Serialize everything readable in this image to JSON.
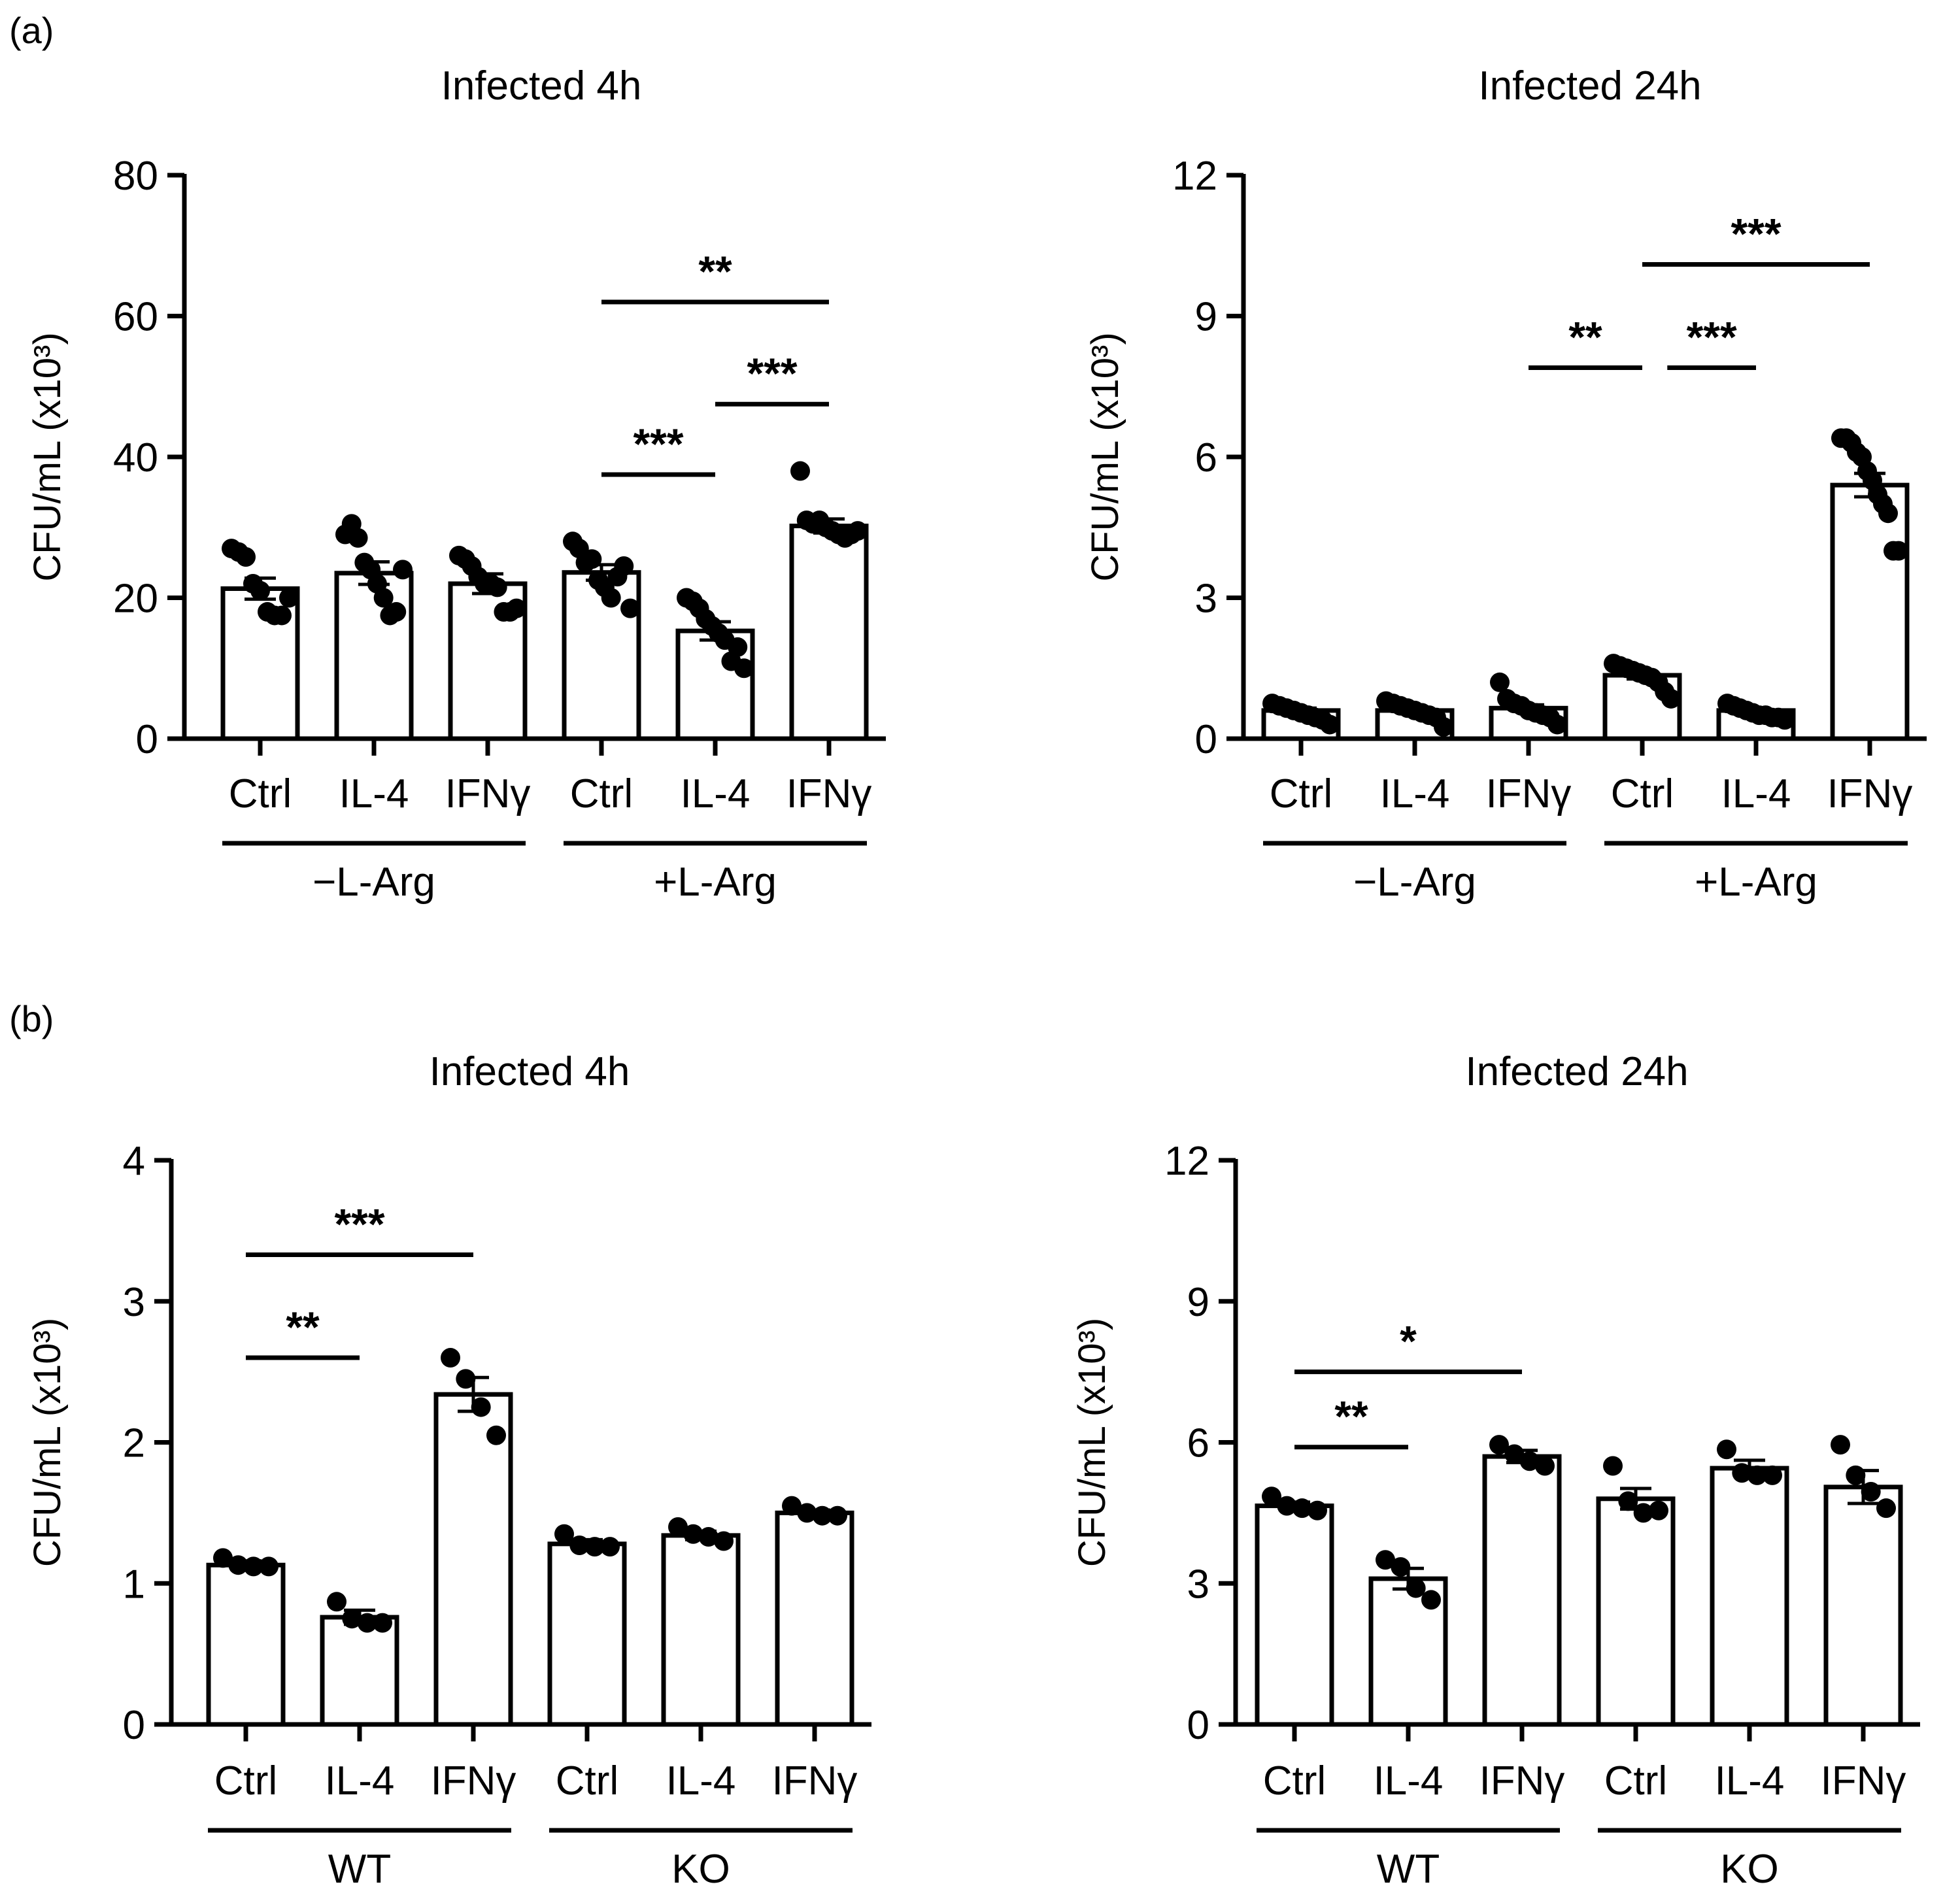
{
  "panel_labels": [
    "(a)",
    "(b)"
  ],
  "chart_data": [
    {
      "type": "bar",
      "panel": "(a)",
      "title": "Infected 4h",
      "ylabel": "CFU/mL (x10³)",
      "ylim": [
        0,
        80
      ],
      "yticks": [
        0,
        20,
        40,
        60,
        80
      ],
      "categories": [
        "Ctrl",
        "IL-4",
        "IFNγ",
        "Ctrl",
        "IL-4",
        "IFNγ"
      ],
      "groups": [
        {
          "label": "−L-Arg",
          "from": 0,
          "to": 2
        },
        {
          "label": "+L-Arg",
          "from": 3,
          "to": 5
        }
      ],
      "values": [
        21.3,
        23.5,
        22.0,
        23.6,
        15.3,
        30.2
      ],
      "sem": [
        1.5,
        1.6,
        1.4,
        1.1,
        1.3,
        1.0
      ],
      "points": [
        [
          27,
          26.5,
          25.8,
          22,
          21,
          18,
          17.5,
          17.5,
          20
        ],
        [
          29,
          30.5,
          28.5,
          25,
          24,
          22,
          20,
          17.5,
          18,
          24
        ],
        [
          26,
          25.5,
          24.5,
          23,
          22,
          22,
          21.5,
          18,
          18,
          18.5
        ],
        [
          28,
          27,
          25,
          25.5,
          22.5,
          21.5,
          20,
          23,
          24.5,
          18.5
        ],
        [
          20,
          19.5,
          18.5,
          17,
          16,
          15,
          14,
          11,
          13,
          10
        ],
        [
          38,
          31,
          30.5,
          31,
          30,
          29.5,
          29,
          28.5,
          29,
          29.5
        ]
      ],
      "significance": [
        {
          "from": 3,
          "to": 5,
          "label": "**",
          "y": 62
        },
        {
          "from": 4,
          "to": 5,
          "label": "***",
          "y": 47.5
        },
        {
          "from": 3,
          "to": 4,
          "label": "***",
          "y": 37.5
        }
      ]
    },
    {
      "type": "bar",
      "panel": "(a)",
      "title": "Infected 24h",
      "ylabel": "CFU/mL (x10³)",
      "ylim": [
        0,
        12
      ],
      "yticks": [
        0,
        3,
        6,
        9,
        12
      ],
      "categories": [
        "Ctrl",
        "IL-4",
        "IFNγ",
        "Ctrl",
        "IL-4",
        "IFNγ"
      ],
      "groups": [
        {
          "label": "−L-Arg",
          "from": 0,
          "to": 2
        },
        {
          "label": "+L-Arg",
          "from": 3,
          "to": 5
        }
      ],
      "values": [
        0.6,
        0.6,
        0.65,
        1.35,
        0.6,
        5.4
      ],
      "sem": [
        0.05,
        0.05,
        0.07,
        0.08,
        0.03,
        0.25
      ],
      "points": [
        [
          0.75,
          0.7,
          0.65,
          0.6,
          0.55,
          0.5,
          0.45,
          0.4,
          0.3
        ],
        [
          0.8,
          0.75,
          0.7,
          0.65,
          0.6,
          0.55,
          0.5,
          0.45,
          0.25
        ],
        [
          1.2,
          0.85,
          0.75,
          0.7,
          0.6,
          0.55,
          0.5,
          0.45,
          0.3
        ],
        [
          1.6,
          1.55,
          1.5,
          1.45,
          1.4,
          1.35,
          1.3,
          1.2,
          1.0,
          0.85
        ],
        [
          0.75,
          0.7,
          0.65,
          0.6,
          0.55,
          0.5,
          0.5,
          0.45,
          0.45,
          0.4
        ],
        [
          6.4,
          6.4,
          6.3,
          6.1,
          6.0,
          5.7,
          5.5,
          5.2,
          5.0,
          4.8,
          4.0,
          4.0
        ]
      ],
      "significance": [
        {
          "from": 3,
          "to": 5,
          "label": "***",
          "y": 10.1
        },
        {
          "from": 2,
          "to": 3,
          "label": "**",
          "y": 7.9
        },
        {
          "from": 3.22,
          "to": 4,
          "label": "***",
          "y": 7.9
        }
      ]
    },
    {
      "type": "bar",
      "panel": "(b)",
      "title": "Infected 4h",
      "ylabel": "CFU/mL (x10³)",
      "ylim": [
        0,
        4
      ],
      "yticks": [
        0,
        1,
        2,
        3,
        4
      ],
      "categories": [
        "Ctrl",
        "IL-4",
        "IFNγ",
        "Ctrl",
        "IL-4",
        "IFNγ"
      ],
      "groups": [
        {
          "label": "WT",
          "from": 0,
          "to": 2
        },
        {
          "label": "KO",
          "from": 3,
          "to": 5
        }
      ],
      "values": [
        1.13,
        0.76,
        2.34,
        1.28,
        1.34,
        1.5
      ],
      "sem": [
        0.03,
        0.05,
        0.12,
        0.03,
        0.03,
        0.02
      ],
      "points": [
        [
          1.18,
          1.13,
          1.12,
          1.12
        ],
        [
          0.87,
          0.75,
          0.72,
          0.72
        ],
        [
          2.6,
          2.45,
          2.25,
          2.05
        ],
        [
          1.35,
          1.27,
          1.26,
          1.26
        ],
        [
          1.4,
          1.35,
          1.33,
          1.3
        ],
        [
          1.55,
          1.5,
          1.48,
          1.48
        ]
      ],
      "significance": [
        {
          "from": 0,
          "to": 2,
          "label": "***",
          "y": 3.33
        },
        {
          "from": 0,
          "to": 1,
          "label": "**",
          "y": 2.6
        }
      ]
    },
    {
      "type": "bar",
      "panel": "(b)",
      "title": "Infected 24h",
      "ylabel": "CFU/mL (x10³)",
      "ylim": [
        0,
        12
      ],
      "yticks": [
        0,
        3,
        6,
        9,
        12
      ],
      "categories": [
        "Ctrl",
        "IL-4",
        "IFNγ",
        "Ctrl",
        "IL-4",
        "IFNγ"
      ],
      "groups": [
        {
          "label": "WT",
          "from": 0,
          "to": 2
        },
        {
          "label": "KO",
          "from": 3,
          "to": 5
        }
      ],
      "values": [
        4.65,
        3.1,
        5.7,
        4.8,
        5.45,
        5.05
      ],
      "sem": [
        0.08,
        0.22,
        0.13,
        0.22,
        0.17,
        0.35
      ],
      "points": [
        [
          4.85,
          4.65,
          4.6,
          4.55
        ],
        [
          3.5,
          3.35,
          2.9,
          2.65
        ],
        [
          5.95,
          5.75,
          5.6,
          5.5
        ],
        [
          5.5,
          4.75,
          4.5,
          4.55
        ],
        [
          5.85,
          5.35,
          5.3,
          5.3
        ],
        [
          5.95,
          5.3,
          4.95,
          4.6
        ]
      ],
      "significance": [
        {
          "from": 0,
          "to": 2,
          "label": "*",
          "y": 7.5
        },
        {
          "from": 0,
          "to": 1,
          "label": "**",
          "y": 5.9
        }
      ]
    }
  ]
}
